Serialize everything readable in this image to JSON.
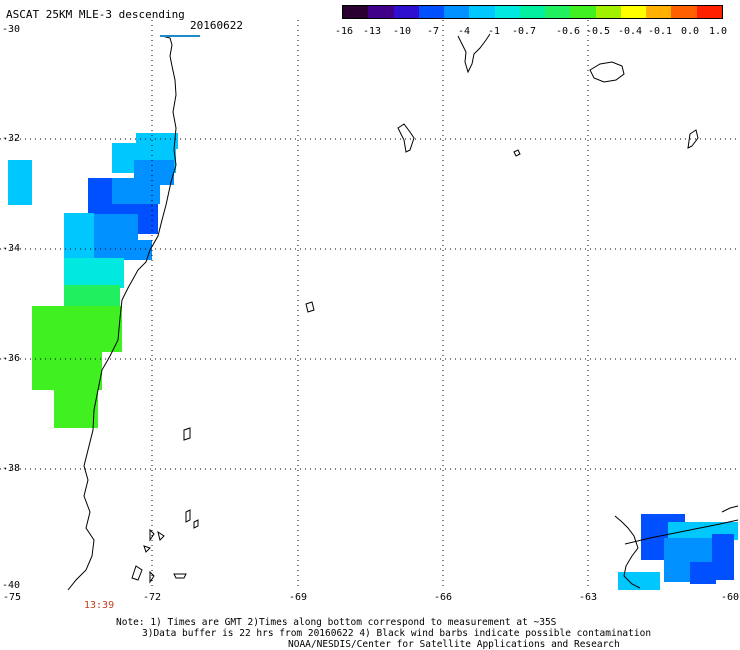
{
  "header": {
    "title": "ASCAT 25KM MLE-3 descending",
    "date": "20160622"
  },
  "colorbar": {
    "colors": [
      "#2a0030",
      "#40008a",
      "#3010d0",
      "#0050ff",
      "#0090ff",
      "#00c8ff",
      "#00e8e0",
      "#00f0a0",
      "#20f060",
      "#40f020",
      "#a0f000",
      "#ffff00",
      "#ffb000",
      "#ff6000",
      "#ff2000"
    ],
    "ticks": [
      "-16",
      "-13",
      "-10",
      "-7",
      "-4",
      "-1",
      "-0.7",
      "-0.6",
      "-0.5",
      "-0.4",
      "-0.1",
      "0.0",
      "1.0"
    ]
  },
  "axes": {
    "lat_labels": [
      "-30",
      "-32",
      "-34",
      "-36",
      "-38",
      "-40"
    ],
    "lon_labels": [
      "-75",
      "-72",
      "-69",
      "-66",
      "-63",
      "-60"
    ],
    "lat_range": [
      -40,
      -30
    ],
    "lon_range": [
      -75,
      -60
    ],
    "grid": "dotted"
  },
  "time_label": "13:39",
  "notes": [
    "Note: 1) Times are GMT 2)Times along bottom correspond to measurement at ~35S",
    "3)Data buffer is 22 hrs from 20160622 4) Black wind barbs indicate possible contamination",
    "NOAA/NESDIS/Center for Satellite Applications and Research"
  ]
}
